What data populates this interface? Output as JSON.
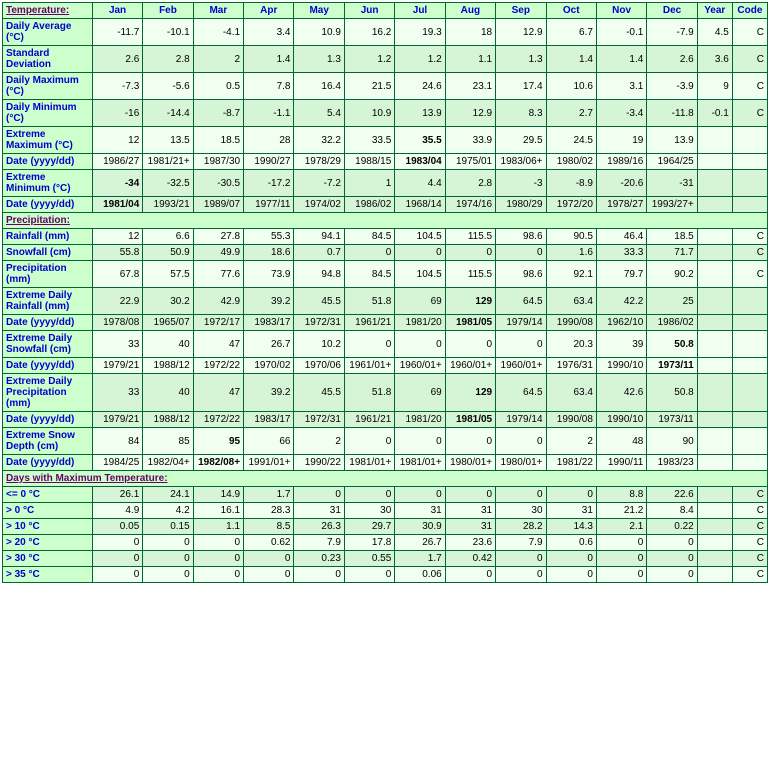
{
  "colors": {
    "border": "#006633",
    "header_bg": "#ccffcc",
    "header_fg": "#0000cc",
    "section_fg": "#660066",
    "row_light": "#f0fff0",
    "row_dark": "#d6f5d6"
  },
  "headers": {
    "section_temp": "Temperature:",
    "section_precip": "Precipitation:",
    "section_days": "Days with Maximum Temperature:",
    "months": [
      "Jan",
      "Feb",
      "Mar",
      "Apr",
      "May",
      "Jun",
      "Jul",
      "Aug",
      "Sep",
      "Oct",
      "Nov",
      "Dec"
    ],
    "year": "Year",
    "code": "Code"
  },
  "rows": {
    "daily_avg": {
      "label": "Daily Average (°C)",
      "shade": "light",
      "v": [
        "-11.7",
        "-10.1",
        "-4.1",
        "3.4",
        "10.9",
        "16.2",
        "19.3",
        "18",
        "12.9",
        "6.7",
        "-0.1",
        "-7.9",
        "4.5",
        "C"
      ]
    },
    "std_dev": {
      "label": "Standard Deviation",
      "shade": "dark",
      "v": [
        "2.6",
        "2.8",
        "2",
        "1.4",
        "1.3",
        "1.2",
        "1.2",
        "1.1",
        "1.3",
        "1.4",
        "1.4",
        "2.6",
        "3.6",
        "C"
      ]
    },
    "daily_max": {
      "label": "Daily Maximum (°C)",
      "shade": "light",
      "v": [
        "-7.3",
        "-5.6",
        "0.5",
        "7.8",
        "16.4",
        "21.5",
        "24.6",
        "23.1",
        "17.4",
        "10.6",
        "3.1",
        "-3.9",
        "9",
        "C"
      ]
    },
    "daily_min": {
      "label": "Daily Minimum (°C)",
      "shade": "dark",
      "v": [
        "-16",
        "-14.4",
        "-8.7",
        "-1.1",
        "5.4",
        "10.9",
        "13.9",
        "12.9",
        "8.3",
        "2.7",
        "-3.4",
        "-11.8",
        "-0.1",
        "C"
      ]
    },
    "ext_max": {
      "label": "Extreme Maximum (°C)",
      "shade": "light",
      "v": [
        "12",
        "13.5",
        "18.5",
        "28",
        "32.2",
        "33.5",
        "35.5",
        "33.9",
        "29.5",
        "24.5",
        "19",
        "13.9",
        "",
        ""
      ],
      "bold": [
        6
      ]
    },
    "ext_max_d": {
      "label": "Date (yyyy/dd)",
      "shade": "light",
      "v": [
        "1986/27",
        "1981/21+",
        "1987/30",
        "1990/27",
        "1978/29",
        "1988/15",
        "1983/04",
        "1975/01",
        "1983/06+",
        "1980/02",
        "1989/16",
        "1964/25",
        "",
        ""
      ],
      "bold": [
        6
      ]
    },
    "ext_min": {
      "label": "Extreme Minimum (°C)",
      "shade": "dark",
      "v": [
        "-34",
        "-32.5",
        "-30.5",
        "-17.2",
        "-7.2",
        "1",
        "4.4",
        "2.8",
        "-3",
        "-8.9",
        "-20.6",
        "-31",
        "",
        ""
      ],
      "bold": [
        0
      ]
    },
    "ext_min_d": {
      "label": "Date (yyyy/dd)",
      "shade": "dark",
      "v": [
        "1981/04",
        "1993/21",
        "1989/07",
        "1977/11",
        "1974/02",
        "1986/02",
        "1968/14",
        "1974/16",
        "1980/29",
        "1972/20",
        "1978/27",
        "1993/27+",
        "",
        ""
      ],
      "bold": [
        0
      ]
    },
    "rainfall": {
      "label": "Rainfall (mm)",
      "shade": "light",
      "v": [
        "12",
        "6.6",
        "27.8",
        "55.3",
        "94.1",
        "84.5",
        "104.5",
        "115.5",
        "98.6",
        "90.5",
        "46.4",
        "18.5",
        "",
        "C"
      ]
    },
    "snowfall": {
      "label": "Snowfall (cm)",
      "shade": "dark",
      "v": [
        "55.8",
        "50.9",
        "49.9",
        "18.6",
        "0.7",
        "0",
        "0",
        "0",
        "0",
        "1.6",
        "33.3",
        "71.7",
        "",
        "C"
      ]
    },
    "precip": {
      "label": "Precipitation (mm)",
      "shade": "light",
      "v": [
        "67.8",
        "57.5",
        "77.6",
        "73.9",
        "94.8",
        "84.5",
        "104.5",
        "115.5",
        "98.6",
        "92.1",
        "79.7",
        "90.2",
        "",
        "C"
      ]
    },
    "ext_rain": {
      "label": "Extreme Daily Rainfall (mm)",
      "shade": "dark",
      "v": [
        "22.9",
        "30.2",
        "42.9",
        "39.2",
        "45.5",
        "51.8",
        "69",
        "129",
        "64.5",
        "63.4",
        "42.2",
        "25",
        "",
        ""
      ],
      "bold": [
        7
      ]
    },
    "ext_rain_d": {
      "label": "Date (yyyy/dd)",
      "shade": "dark",
      "v": [
        "1978/08",
        "1965/07",
        "1972/17",
        "1983/17",
        "1972/31",
        "1961/21",
        "1981/20",
        "1981/05",
        "1979/14",
        "1990/08",
        "1962/10",
        "1986/02",
        "",
        ""
      ],
      "bold": [
        7
      ]
    },
    "ext_snow": {
      "label": "Extreme Daily Snowfall (cm)",
      "shade": "light",
      "v": [
        "33",
        "40",
        "47",
        "26.7",
        "10.2",
        "0",
        "0",
        "0",
        "0",
        "20.3",
        "39",
        "50.8",
        "",
        ""
      ],
      "bold": [
        11
      ]
    },
    "ext_snow_d": {
      "label": "Date (yyyy/dd)",
      "shade": "light",
      "v": [
        "1979/21",
        "1988/12",
        "1972/22",
        "1970/02",
        "1970/06",
        "1961/01+",
        "1960/01+",
        "1960/01+",
        "1960/01+",
        "1976/31",
        "1990/10",
        "1973/11",
        "",
        ""
      ],
      "bold": [
        11
      ]
    },
    "ext_prec": {
      "label": "Extreme Daily Precipitation (mm)",
      "shade": "dark",
      "v": [
        "33",
        "40",
        "47",
        "39.2",
        "45.5",
        "51.8",
        "69",
        "129",
        "64.5",
        "63.4",
        "42.6",
        "50.8",
        "",
        ""
      ],
      "bold": [
        7
      ]
    },
    "ext_prec_d": {
      "label": "Date (yyyy/dd)",
      "shade": "dark",
      "v": [
        "1979/21",
        "1988/12",
        "1972/22",
        "1983/17",
        "1972/31",
        "1961/21",
        "1981/20",
        "1981/05",
        "1979/14",
        "1990/08",
        "1990/10",
        "1973/11",
        "",
        ""
      ],
      "bold": [
        7
      ]
    },
    "ext_depth": {
      "label": "Extreme Snow Depth (cm)",
      "shade": "light",
      "v": [
        "84",
        "85",
        "95",
        "66",
        "2",
        "0",
        "0",
        "0",
        "0",
        "2",
        "48",
        "90",
        "",
        ""
      ],
      "bold": [
        2
      ]
    },
    "ext_depth_d": {
      "label": "Date (yyyy/dd)",
      "shade": "light",
      "v": [
        "1984/25",
        "1982/04+",
        "1982/08+",
        "1991/01+",
        "1990/22",
        "1981/01+",
        "1981/01+",
        "1980/01+",
        "1980/01+",
        "1981/22",
        "1990/11",
        "1983/23",
        "",
        ""
      ],
      "bold": [
        2
      ]
    },
    "d_le0": {
      "label": "<= 0 °C",
      "shade": "dark",
      "v": [
        "26.1",
        "24.1",
        "14.9",
        "1.7",
        "0",
        "0",
        "0",
        "0",
        "0",
        "0",
        "8.8",
        "22.6",
        "",
        "C"
      ]
    },
    "d_gt0": {
      "label": "> 0 °C",
      "shade": "light",
      "v": [
        "4.9",
        "4.2",
        "16.1",
        "28.3",
        "31",
        "30",
        "31",
        "31",
        "30",
        "31",
        "21.2",
        "8.4",
        "",
        "C"
      ]
    },
    "d_gt10": {
      "label": "> 10 °C",
      "shade": "dark",
      "v": [
        "0.05",
        "0.15",
        "1.1",
        "8.5",
        "26.3",
        "29.7",
        "30.9",
        "31",
        "28.2",
        "14.3",
        "2.1",
        "0.22",
        "",
        "C"
      ]
    },
    "d_gt20": {
      "label": "> 20 °C",
      "shade": "light",
      "v": [
        "0",
        "0",
        "0",
        "0.62",
        "7.9",
        "17.8",
        "26.7",
        "23.6",
        "7.9",
        "0.6",
        "0",
        "0",
        "",
        "C"
      ]
    },
    "d_gt30": {
      "label": "> 30 °C",
      "shade": "dark",
      "v": [
        "0",
        "0",
        "0",
        "0",
        "0.23",
        "0.55",
        "1.7",
        "0.42",
        "0",
        "0",
        "0",
        "0",
        "",
        "C"
      ]
    },
    "d_gt35": {
      "label": "> 35 °C",
      "shade": "light",
      "v": [
        "0",
        "0",
        "0",
        "0",
        "0",
        "0",
        "0.06",
        "0",
        "0",
        "0",
        "0",
        "0",
        "",
        "C"
      ]
    }
  },
  "row_order": {
    "temp": [
      "daily_avg",
      "std_dev",
      "daily_max",
      "daily_min",
      "ext_max",
      "ext_max_d",
      "ext_min",
      "ext_min_d"
    ],
    "precip": [
      "rainfall",
      "snowfall",
      "precip",
      "ext_rain",
      "ext_rain_d",
      "ext_snow",
      "ext_snow_d",
      "ext_prec",
      "ext_prec_d",
      "ext_depth",
      "ext_depth_d"
    ],
    "days": [
      "d_le0",
      "d_gt0",
      "d_gt10",
      "d_gt20",
      "d_gt30",
      "d_gt35"
    ]
  }
}
